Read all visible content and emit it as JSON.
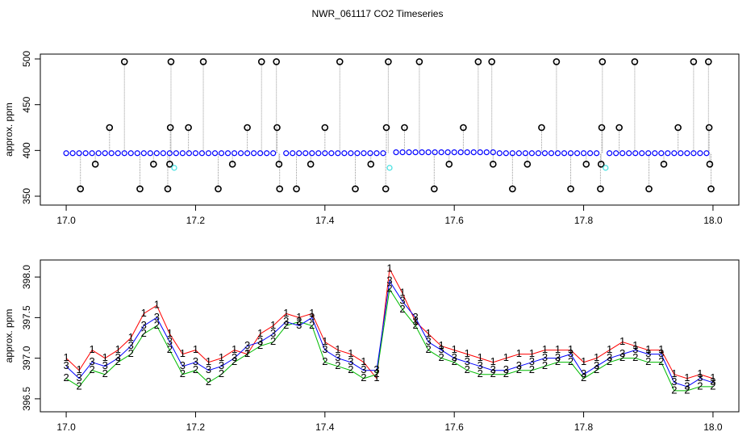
{
  "chart_data": [
    {
      "type": "scatter",
      "title": "NWR_061117  CO2 Timeseries",
      "y_label": "approx. ppm",
      "xlim": [
        16.96,
        18.04
      ],
      "xticks": [
        {
          "value": 17,
          "label": "17.0"
        },
        17.2,
        17.4,
        17.6,
        17.8,
        {
          "value": 18,
          "label": "18.0"
        }
      ],
      "ylim": [
        340.3,
        505.3
      ],
      "yticks": [
        350,
        400,
        450,
        500
      ],
      "series": [
        {
          "color": "#0000ff",
          "x": [
            17.0,
            17.01,
            17.02,
            17.03,
            17.04,
            17.05,
            17.06,
            17.07,
            17.08,
            17.09,
            17.1,
            17.11,
            17.12,
            17.13,
            17.14,
            17.15,
            17.16,
            17.17,
            17.18,
            17.19,
            17.2,
            17.21,
            17.22,
            17.23,
            17.24,
            17.25,
            17.26,
            17.27,
            17.28,
            17.29,
            17.3,
            17.31,
            17.32,
            17.34,
            17.35,
            17.36,
            17.37,
            17.38,
            17.39,
            17.4,
            17.41,
            17.42,
            17.43,
            17.44,
            17.45,
            17.46,
            17.47,
            17.48,
            17.49,
            17.51,
            17.52,
            17.53,
            17.54,
            17.55,
            17.56,
            17.57,
            17.58,
            17.59,
            17.6,
            17.61,
            17.62,
            17.63,
            17.64,
            17.65,
            17.66,
            17.67,
            17.68,
            17.69,
            17.7,
            17.71,
            17.72,
            17.73,
            17.74,
            17.75,
            17.76,
            17.77,
            17.78,
            17.79,
            17.8,
            17.81,
            17.82,
            17.84,
            17.85,
            17.86,
            17.87,
            17.88,
            17.89,
            17.9,
            17.91,
            17.92,
            17.93,
            17.94,
            17.95,
            17.96,
            17.97,
            17.98,
            17.99
          ],
          "values": [
            397,
            397,
            397,
            397,
            397,
            397,
            397,
            397,
            397,
            397,
            397,
            397,
            397,
            397,
            397,
            397,
            397,
            397,
            397,
            397,
            397,
            397,
            397,
            397,
            397,
            397,
            397,
            397,
            397,
            397,
            397,
            397,
            397,
            397,
            397,
            397,
            397,
            397,
            397,
            397,
            397,
            397,
            397,
            397,
            397,
            397,
            397,
            397,
            397,
            398,
            398,
            398,
            398,
            398,
            398,
            398,
            398,
            398,
            398,
            398,
            398,
            398,
            398,
            398,
            398,
            397,
            397,
            397,
            397,
            397,
            397,
            397,
            397,
            397,
            397,
            397,
            397,
            397,
            397,
            397,
            397,
            397,
            397,
            397,
            397,
            397,
            397,
            397,
            397,
            397,
            397,
            397,
            397,
            397,
            397,
            397,
            397
          ]
        },
        {
          "color": "#000000",
          "stem": true,
          "x": [
            17.022,
            17.045,
            17.067,
            17.09,
            17.114,
            17.135,
            17.157,
            17.16,
            17.161,
            17.162,
            17.189,
            17.212,
            17.235,
            17.257,
            17.28,
            17.302,
            17.325,
            17.326,
            17.329,
            17.33,
            17.356,
            17.378,
            17.4,
            17.423,
            17.447,
            17.471,
            17.494,
            17.495,
            17.498,
            17.523,
            17.546,
            17.569,
            17.592,
            17.614,
            17.637,
            17.658,
            17.66,
            17.69,
            17.713,
            17.735,
            17.758,
            17.78,
            17.804,
            17.826,
            17.827,
            17.828,
            17.829,
            17.855,
            17.879,
            17.901,
            17.924,
            17.946,
            17.97,
            17.993,
            17.994,
            17.995,
            17.997
          ],
          "values": [
            358,
            385,
            425,
            497,
            358,
            385,
            358,
            385,
            425,
            497,
            425,
            497,
            358,
            385,
            425,
            497,
            497,
            425,
            385,
            358,
            358,
            385,
            425,
            497,
            358,
            385,
            358,
            425,
            497,
            425,
            497,
            358,
            385,
            425,
            497,
            497,
            385,
            358,
            385,
            425,
            497,
            358,
            385,
            358,
            385,
            425,
            497,
            425,
            497,
            358,
            385,
            425,
            497,
            497,
            425,
            385,
            358
          ]
        },
        {
          "color": "#40e0e0",
          "x": [
            17.167,
            17.5,
            17.834
          ],
          "values": [
            381,
            381,
            381
          ]
        }
      ]
    },
    {
      "type": "line",
      "y_label": "approx. ppm",
      "xlim": [
        16.96,
        18.04
      ],
      "xticks": [
        {
          "value": 17,
          "label": "17.0"
        },
        17.2,
        17.4,
        17.6,
        17.8,
        {
          "value": 18,
          "label": "18.0"
        }
      ],
      "ylim": [
        396.34,
        398.21
      ],
      "yticks": [
        {
          "value": 396.5,
          "label": "396.5"
        },
        {
          "value": 397,
          "label": "397.0"
        },
        {
          "value": 397.5,
          "label": "397.5"
        },
        {
          "value": 398,
          "label": "398.0"
        }
      ],
      "x": [
        17.0,
        17.02,
        17.04,
        17.06,
        17.08,
        17.1,
        17.12,
        17.14,
        17.16,
        17.18,
        17.2,
        17.22,
        17.24,
        17.26,
        17.28,
        17.3,
        17.32,
        17.34,
        17.36,
        17.38,
        17.4,
        17.42,
        17.44,
        17.46,
        17.48,
        17.5,
        17.52,
        17.54,
        17.56,
        17.58,
        17.6,
        17.62,
        17.64,
        17.66,
        17.68,
        17.7,
        17.72,
        17.74,
        17.76,
        17.78,
        17.8,
        17.82,
        17.84,
        17.86,
        17.88,
        17.9,
        17.92,
        17.94,
        17.96,
        17.98,
        18.0
      ],
      "series": [
        {
          "name": "1",
          "color": "#ff0000",
          "values": [
            397.0,
            396.85,
            397.1,
            397.0,
            397.1,
            397.25,
            397.55,
            397.65,
            397.3,
            397.05,
            397.1,
            396.95,
            397.0,
            397.1,
            397.05,
            397.3,
            397.4,
            397.55,
            397.5,
            397.55,
            397.2,
            397.1,
            397.05,
            396.95,
            396.75,
            398.1,
            397.8,
            397.45,
            397.3,
            397.15,
            397.1,
            397.05,
            397.0,
            396.95,
            397.0,
            397.05,
            397.05,
            397.1,
            397.1,
            397.1,
            396.95,
            397.0,
            397.1,
            397.2,
            397.15,
            397.1,
            397.1,
            396.8,
            396.75,
            396.8,
            396.75
          ]
        },
        {
          "name": "2",
          "color": "#00bb00",
          "values": [
            396.75,
            396.65,
            396.85,
            396.8,
            396.95,
            397.05,
            397.3,
            397.4,
            397.1,
            396.8,
            396.85,
            396.7,
            396.8,
            396.95,
            397.05,
            397.15,
            397.2,
            397.4,
            397.45,
            397.4,
            396.95,
            396.9,
            396.85,
            396.75,
            396.8,
            397.85,
            397.6,
            397.4,
            397.1,
            397.0,
            396.95,
            396.85,
            396.8,
            396.8,
            396.8,
            396.85,
            396.85,
            396.9,
            396.95,
            396.95,
            396.75,
            396.85,
            396.95,
            397.0,
            397.0,
            396.95,
            396.95,
            396.6,
            396.6,
            396.65,
            396.65
          ]
        },
        {
          "name": "3",
          "color": "#0000ff",
          "values": [
            396.9,
            396.75,
            396.95,
            396.9,
            397.0,
            397.15,
            397.4,
            397.5,
            397.2,
            396.9,
            396.95,
            396.85,
            396.9,
            397.0,
            397.15,
            397.2,
            397.3,
            397.45,
            397.4,
            397.5,
            397.1,
            397.0,
            396.95,
            396.85,
            396.85,
            397.95,
            397.7,
            397.5,
            397.2,
            397.1,
            397.0,
            396.95,
            396.9,
            396.85,
            396.85,
            396.9,
            396.95,
            397.0,
            397.0,
            397.05,
            396.8,
            396.9,
            397.0,
            397.05,
            397.1,
            397.05,
            397.05,
            396.7,
            396.65,
            396.75,
            396.7
          ]
        }
      ]
    }
  ]
}
